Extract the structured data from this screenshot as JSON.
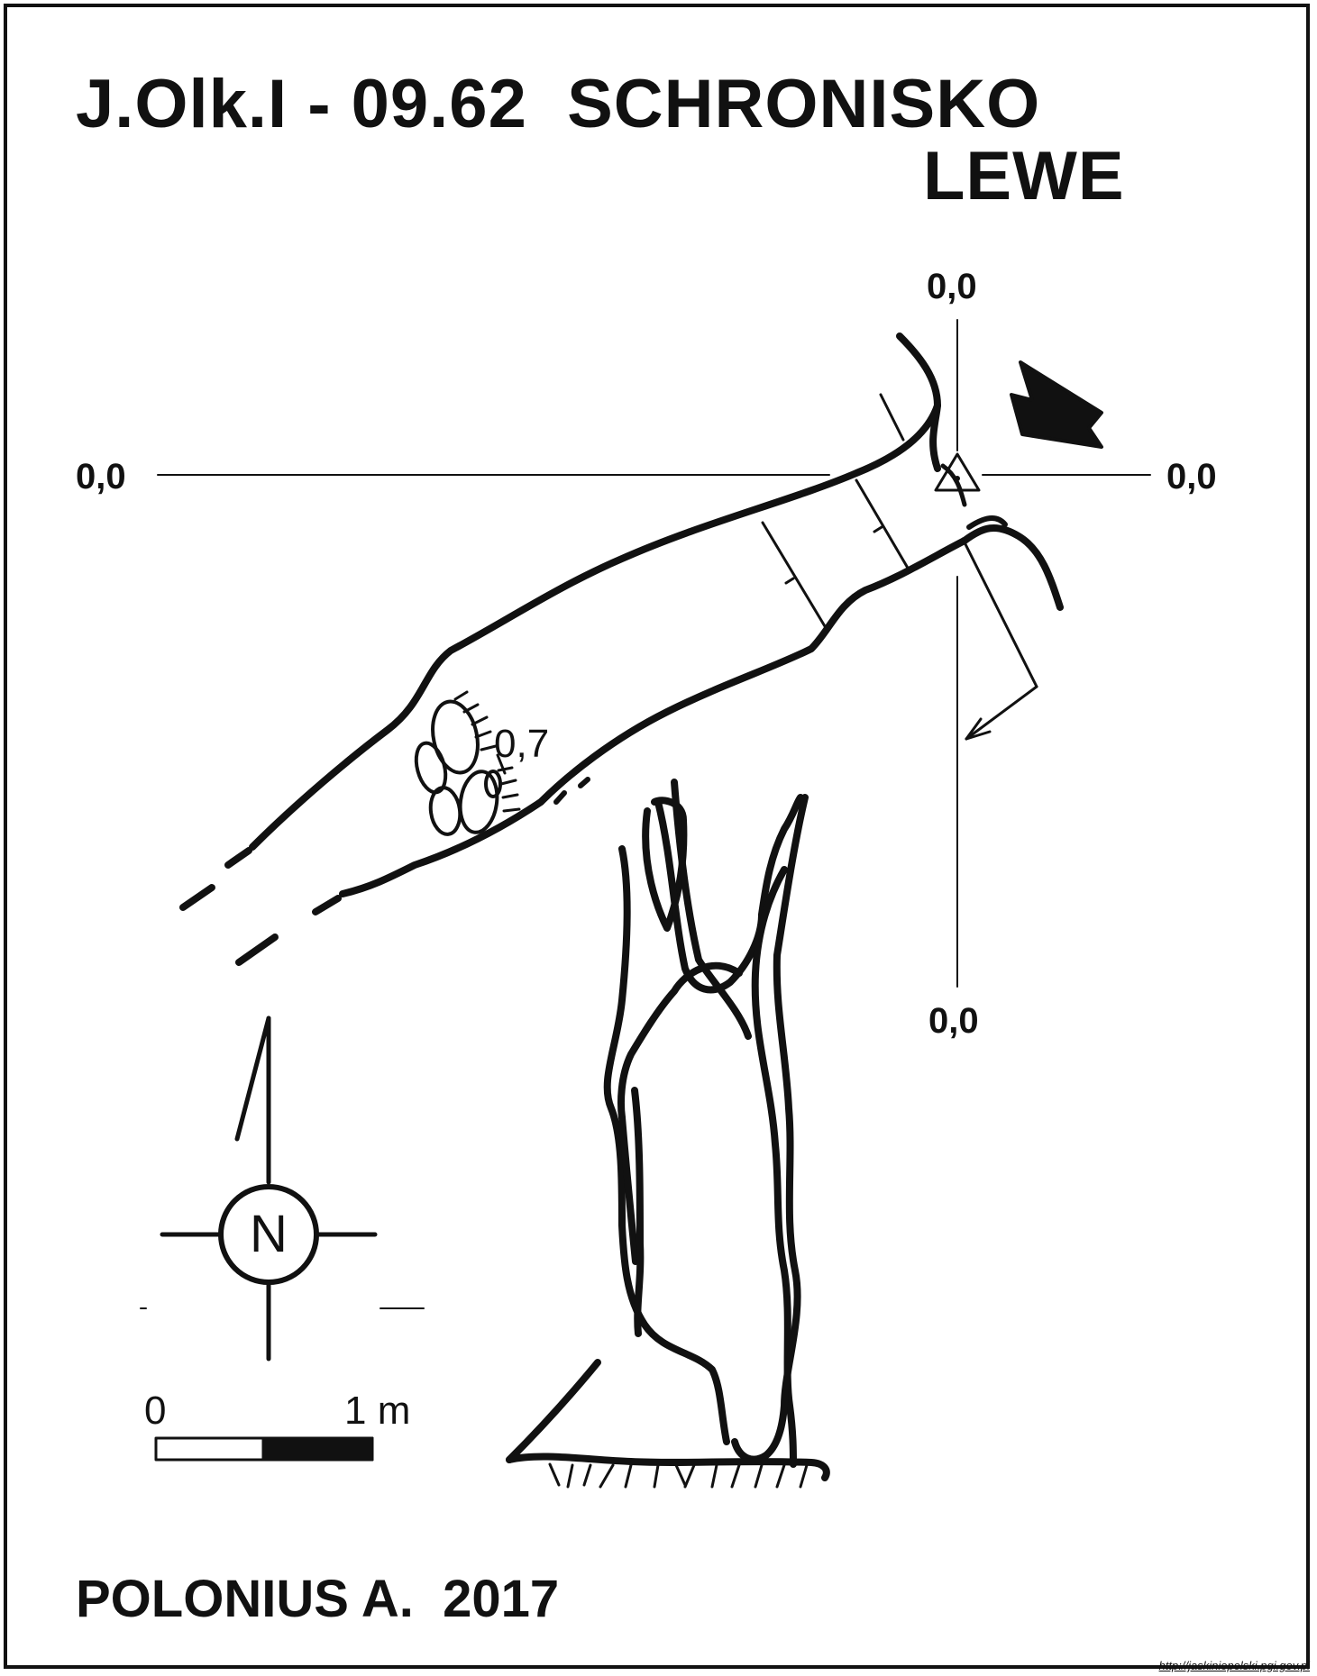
{
  "title": {
    "line1": "J.Olk.I - 09.62  SCHRONISKO",
    "line2": "LEWE"
  },
  "axis_labels": {
    "top": "0,0",
    "left": "0,0",
    "right": "0,0",
    "bottom": "0,0"
  },
  "depth_label": "0,7",
  "compass": {
    "letter": "N",
    "icon": "north-arrow-icon"
  },
  "scale": {
    "start_label": "0",
    "end_label": "1 m",
    "icon": "scale-bar-icon"
  },
  "author": "POLONIUS A.  2017",
  "source_url": "http://jaskiniepolski.pgi.gov.pl",
  "colors": {
    "ink": "#111111",
    "paper": "#ffffff"
  }
}
